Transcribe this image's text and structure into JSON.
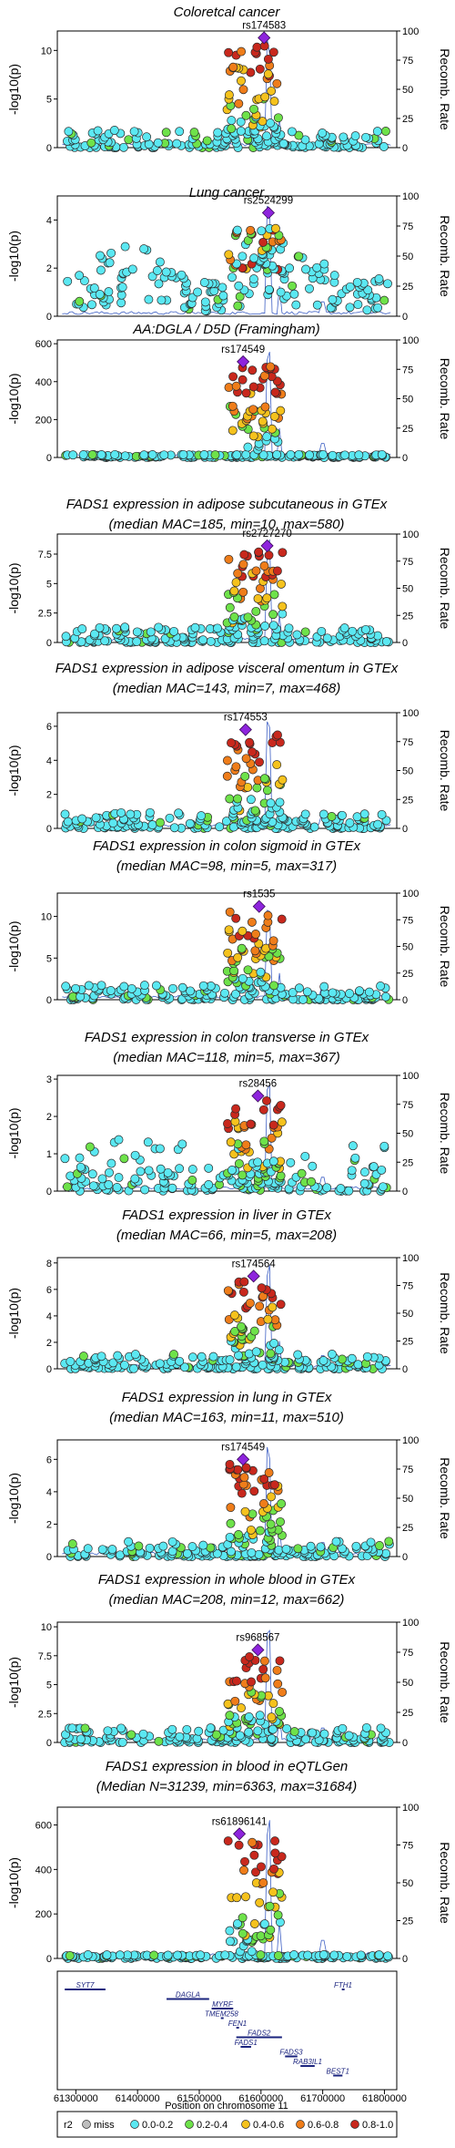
{
  "chart_data": {
    "type": "scatter",
    "x_label": "Position on chromosome 11",
    "x_range": [
      61270000,
      61820000
    ],
    "x_ticks": [
      61300000,
      61400000,
      61500000,
      61600000,
      61700000,
      61800000
    ],
    "x_tick_labels": [
      "61300000",
      "61400000",
      "61500000",
      "61600000",
      "61700000",
      "61800000"
    ],
    "y_label_suffix": "log10(p)",
    "y2_label": "Recomb. Rate",
    "y2_range": [
      0,
      100
    ],
    "y2_ticks": [
      0,
      25,
      50,
      75,
      100
    ],
    "ld_bins": [
      {
        "label": "miss",
        "color": "#bdbdbd"
      },
      {
        "label": "0.0-0.2",
        "color": "#5be8f2"
      },
      {
        "label": "0.2-0.4",
        "color": "#6ee24a"
      },
      {
        "label": "0.4-0.6",
        "color": "#f5c21d"
      },
      {
        "label": "0.6-0.8",
        "color": "#ef7d1a"
      },
      {
        "label": "0.8-1.0",
        "color": "#c8281d"
      }
    ],
    "lead_color": "#8e24dd",
    "legend_title": "r2",
    "panels": [
      {
        "title": [
          "Coloretcal cancer"
        ],
        "lead_snp": "rs174583",
        "lead_pos": 61605000,
        "lead_p": 11.3,
        "ylim": [
          0,
          12
        ],
        "yticks": [
          0,
          5,
          10
        ],
        "shape": "broad"
      },
      {
        "title": [
          "Lung cancer"
        ],
        "lead_snp": "rs2524299",
        "lead_pos": 61612000,
        "lead_p": 4.3,
        "ylim": [
          0,
          5
        ],
        "yticks": [
          0,
          2,
          4
        ],
        "shape": "lung"
      },
      {
        "title": [
          "AA:DGLA / D5D (Framingham)"
        ],
        "lead_snp": "rs174549",
        "lead_pos": 61571000,
        "lead_p": 505,
        "ylim": [
          0,
          620
        ],
        "yticks": [
          0,
          200,
          400,
          600
        ],
        "shape": "sharp"
      },
      {
        "title": [
          "FADS1 expression in adipose subcutaneous in GTEx",
          "(median MAC=185, min=10, max=580)"
        ],
        "lead_snp": "rs2727270",
        "lead_pos": 61610000,
        "lead_p": 8.2,
        "ylim": [
          0,
          9.2
        ],
        "yticks": [
          0,
          2.5,
          5,
          7.5
        ],
        "shape": "eqtl"
      },
      {
        "title": [
          "FADS1 expression in adipose visceral omentum in GTEx",
          "(median MAC=143, min=7, max=468)"
        ],
        "lead_snp": "rs174553",
        "lead_pos": 61575000,
        "lead_p": 5.8,
        "ylim": [
          0,
          6.8
        ],
        "yticks": [
          0,
          2,
          4,
          6
        ],
        "shape": "eqtl"
      },
      {
        "title": [
          "FADS1 expression in colon sigmoid in GTEx",
          "(median MAC=98, min=5, max=317)"
        ],
        "lead_snp": "rs1535",
        "lead_pos": 61597000,
        "lead_p": 11.2,
        "ylim": [
          0,
          12.8
        ],
        "yticks": [
          0,
          5,
          10
        ],
        "shape": "eqtl"
      },
      {
        "title": [
          "FADS1 expression in colon transverse in GTEx",
          "(median MAC=118, min=5, max=367)"
        ],
        "lead_snp": "rs28456",
        "lead_pos": 61595000,
        "lead_p": 2.55,
        "ylim": [
          0,
          3.1
        ],
        "yticks": [
          0,
          1,
          2,
          3
        ],
        "shape": "transverse"
      },
      {
        "title": [
          "FADS1 expression in liver in GTEx",
          "(median MAC=66, min=5, max=208)"
        ],
        "lead_snp": "rs174564",
        "lead_pos": 61588000,
        "lead_p": 7.0,
        "ylim": [
          0,
          8.4
        ],
        "yticks": [
          0,
          2,
          4,
          6,
          8
        ],
        "shape": "eqtl"
      },
      {
        "title": [
          "FADS1 expression in lung in GTEx",
          "(median MAC=163, min=11, max=510)"
        ],
        "lead_snp": "rs174549",
        "lead_pos": 61571000,
        "lead_p": 6.0,
        "ylim": [
          0,
          7.2
        ],
        "yticks": [
          0,
          2,
          4,
          6
        ],
        "shape": "eqtl"
      },
      {
        "title": [
          "FADS1 expression in whole blood in GTEx",
          "(median MAC=208, min=12, max=662)"
        ],
        "lead_snp": "rs968567",
        "lead_pos": 61595000,
        "lead_p": 8.0,
        "ylim": [
          0,
          10.4
        ],
        "yticks": [
          0,
          2.5,
          5,
          7.5,
          10
        ],
        "shape": "eqtl"
      },
      {
        "title": [
          "FADS1 expression in blood in eQTLGen",
          "(Median N=31239, min=6363, max=31684)"
        ],
        "lead_snp": "rs61896141",
        "lead_pos": 61565000,
        "lead_p": 560,
        "ylim": [
          0,
          680
        ],
        "yticks": [
          0,
          200,
          400,
          600
        ],
        "shape": "sharp"
      }
    ],
    "genes": [
      {
        "name": "SYT7",
        "start": 61282000,
        "end": 61348000,
        "row": 0
      },
      {
        "name": "FTH1",
        "start": 61731000,
        "end": 61735000,
        "row": 0
      },
      {
        "name": "DAGLA",
        "start": 61447000,
        "end": 61516000,
        "row": 1
      },
      {
        "name": "MYRF",
        "start": 61520000,
        "end": 61555000,
        "row": 2
      },
      {
        "name": "TMEM258",
        "start": 61535000,
        "end": 61537000,
        "row": 3
      },
      {
        "name": "FEN1",
        "start": 61560000,
        "end": 61564000,
        "row": 4
      },
      {
        "name": "FADS2",
        "start": 61560000,
        "end": 61634000,
        "row": 5
      },
      {
        "name": "FADS1",
        "start": 61567000,
        "end": 61584000,
        "row": 6
      },
      {
        "name": "FADS3",
        "start": 61639000,
        "end": 61659000,
        "row": 7
      },
      {
        "name": "RAB3IL1",
        "start": 61664000,
        "end": 61687000,
        "row": 8
      },
      {
        "name": "BEST1",
        "start": 61717000,
        "end": 61732000,
        "row": 9
      }
    ]
  }
}
